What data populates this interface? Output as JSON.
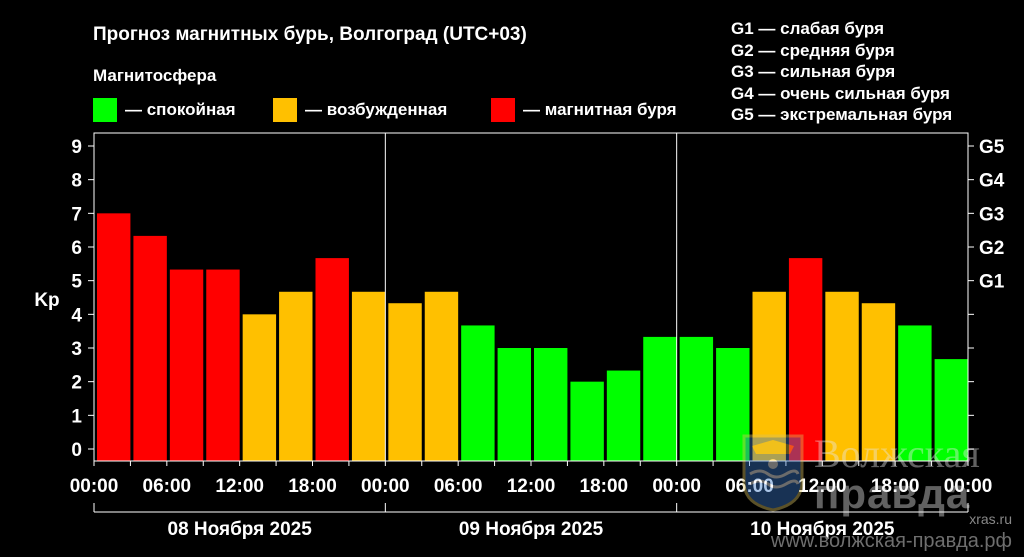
{
  "chart_data": {
    "type": "bar",
    "title": "Прогноз магнитных бурь, Волгоград (UTC+03)",
    "ylabel": "Kp",
    "ylim": [
      0,
      9
    ],
    "yticks": [
      "0",
      "1",
      "2",
      "3",
      "4",
      "5",
      "6",
      "7",
      "8",
      "9"
    ],
    "g_ticks": [
      {
        "label": "G1",
        "kp": 5
      },
      {
        "label": "G2",
        "kp": 6
      },
      {
        "label": "G3",
        "kp": 7
      },
      {
        "label": "G4",
        "kp": 8
      },
      {
        "label": "G5",
        "kp": 9
      }
    ],
    "x_tick_labels": [
      "00:00",
      "06:00",
      "12:00",
      "18:00",
      "00:00",
      "06:00",
      "12:00",
      "18:00",
      "00:00",
      "06:00",
      "12:00",
      "18:00",
      "00:00"
    ],
    "days": [
      "08 Ноября 2025",
      "09 Ноября 2025",
      "10 Ноября 2025"
    ],
    "values": [
      7.0,
      6.33,
      5.33,
      5.33,
      4.0,
      4.67,
      5.67,
      4.67,
      4.33,
      4.67,
      3.67,
      3.0,
      3.0,
      2.0,
      2.33,
      3.33,
      3.33,
      3.0,
      4.67,
      5.67,
      4.67,
      4.33,
      3.67,
      2.67
    ],
    "colors": {
      "quiet": "#00ff00",
      "active": "#ffc000",
      "storm": "#ff0000"
    },
    "grid": false
  },
  "magnetosphere": {
    "title": "Магнитосфера",
    "legend": [
      {
        "label": "— спокойная",
        "color": "#00ff00"
      },
      {
        "label": "— возбужденная",
        "color": "#ffc000"
      },
      {
        "label": "— магнитная буря",
        "color": "#ff0000"
      }
    ]
  },
  "g_legend": [
    "G1 — слабая буря",
    "G2 — средняя буря",
    "G3 — сильная буря",
    "G4 — очень сильная буря",
    "G5 — экстремальная буря"
  ],
  "watermark": {
    "line1": "Волжская",
    "line2": "правда",
    "site1": "xras.ru",
    "site2": "www.волжская-правда.рф"
  }
}
